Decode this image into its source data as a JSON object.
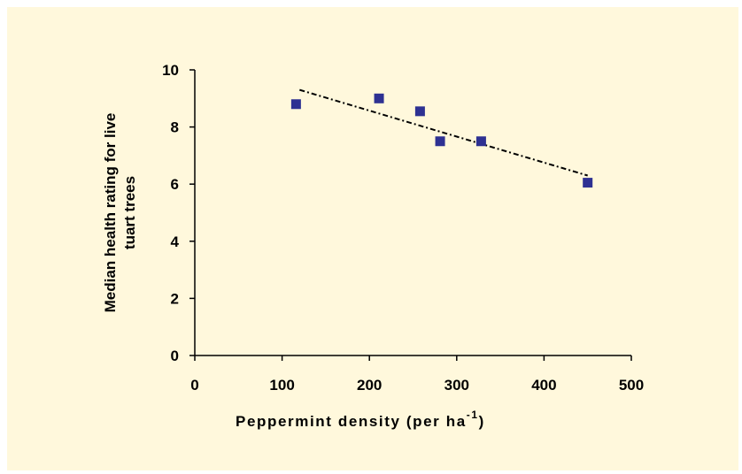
{
  "colors": {
    "background": "#fff8dc",
    "marker": "#2e3192",
    "trendline": "#000000",
    "axis": "#000000"
  },
  "chart_data": {
    "type": "scatter",
    "title": "",
    "xlabel_main": "Peppermint density (per ha",
    "xlabel_sup": "-1",
    "xlabel_close": ")",
    "ylabel_line1": "Median health rating for live",
    "ylabel_line2": "tuart trees",
    "xlim": [
      0,
      500
    ],
    "ylim": [
      0,
      10
    ],
    "xticks": [
      "0",
      "100",
      "200",
      "300",
      "400",
      "500"
    ],
    "yticks": [
      "0",
      "2",
      "4",
      "6",
      "8",
      "10"
    ],
    "grid": false,
    "legend": "none",
    "series": [
      {
        "marker": "square",
        "x": [
          116,
          211,
          258,
          281,
          328,
          450
        ],
        "y": [
          8.8,
          9.0,
          8.55,
          7.5,
          7.5,
          6.05
        ]
      }
    ],
    "trendline": {
      "style": "dashed",
      "x": [
        120,
        450
      ],
      "y": [
        9.3,
        6.3
      ]
    }
  }
}
